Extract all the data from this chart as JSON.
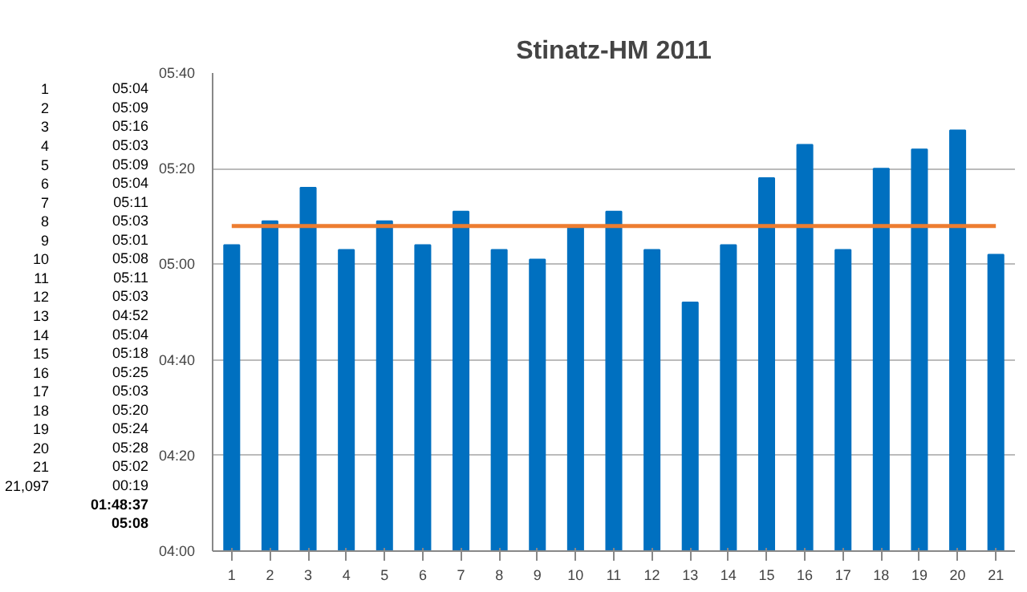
{
  "chart_data": {
    "type": "bar",
    "title": "Stinatz-HM 2011",
    "categories": [
      "1",
      "2",
      "3",
      "4",
      "5",
      "6",
      "7",
      "8",
      "9",
      "10",
      "11",
      "12",
      "13",
      "14",
      "15",
      "16",
      "17",
      "18",
      "19",
      "20",
      "21"
    ],
    "values": [
      304,
      309,
      316,
      303,
      309,
      304,
      311,
      303,
      301,
      308,
      311,
      303,
      292,
      304,
      318,
      325,
      303,
      320,
      324,
      328,
      302
    ],
    "color": "#0070c0",
    "ylim": [
      240,
      340
    ],
    "yticks": [
      {
        "value": 240,
        "label": "04:00"
      },
      {
        "value": 260,
        "label": "04:20"
      },
      {
        "value": 280,
        "label": "04:40"
      },
      {
        "value": 300,
        "label": "05:00"
      },
      {
        "value": 320,
        "label": "05:20"
      },
      {
        "value": 340,
        "label": "05:40"
      }
    ],
    "grid": "y",
    "ref_lines": [
      {
        "axis": "y",
        "value": 308,
        "color": "#ed7d31"
      }
    ],
    "annotations": [
      "05:04",
      "05:09",
      "05:16",
      "05:03",
      "05:09",
      "05:04",
      "05:11",
      "05:03",
      "05:01",
      "05:08",
      "05:11",
      "05:03",
      "04:52",
      "05:04",
      "05:18",
      "05:25",
      "05:03",
      "05:20",
      "05:24",
      "05:28",
      "05:02",
      "21,097",
      "00:19",
      "01:48:37",
      "05:08"
    ]
  }
}
